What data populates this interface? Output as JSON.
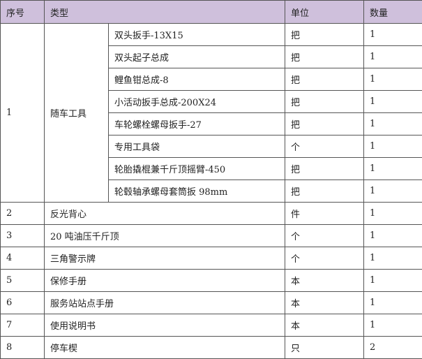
{
  "header": {
    "index": "序号",
    "type": "类型",
    "unit": "单位",
    "qty": "数量"
  },
  "group": {
    "index": "1",
    "type": "随车工具",
    "items": [
      {
        "name": "双头扳手-13X15",
        "unit": "把",
        "qty": "1"
      },
      {
        "name": "双头起子总成",
        "unit": "把",
        "qty": "1"
      },
      {
        "name": "鲤鱼钳总成-8",
        "unit": "把",
        "qty": "1"
      },
      {
        "name": "小活动扳手总成-200X24",
        "unit": "把",
        "qty": "1"
      },
      {
        "name": "车轮螺栓螺母扳手-27",
        "unit": "把",
        "qty": "1"
      },
      {
        "name": "专用工具袋",
        "unit": "个",
        "qty": "1"
      },
      {
        "name": "轮胎撬棍兼千斤顶摇臂-450",
        "unit": "把",
        "qty": "1"
      },
      {
        "name": "轮毂轴承螺母套筒扳 98mm",
        "unit": "把",
        "qty": "1"
      }
    ]
  },
  "rows": [
    {
      "index": "2",
      "type": "反光背心",
      "unit": "件",
      "qty": "1"
    },
    {
      "index": "3",
      "type": "20 吨油压千斤顶",
      "unit": "个",
      "qty": "1"
    },
    {
      "index": "4",
      "type": "三角警示牌",
      "unit": "个",
      "qty": "1"
    },
    {
      "index": "5",
      "type": "保修手册",
      "unit": "本",
      "qty": "1"
    },
    {
      "index": "6",
      "type": "服务站站点手册",
      "unit": "本",
      "qty": "1"
    },
    {
      "index": "7",
      "type": "使用说明书",
      "unit": "本",
      "qty": "1"
    },
    {
      "index": "8",
      "type": "停车楔",
      "unit": "只",
      "qty": "2"
    }
  ],
  "colors": {
    "header_bg": "#cfc0dc",
    "border": "#555555"
  }
}
